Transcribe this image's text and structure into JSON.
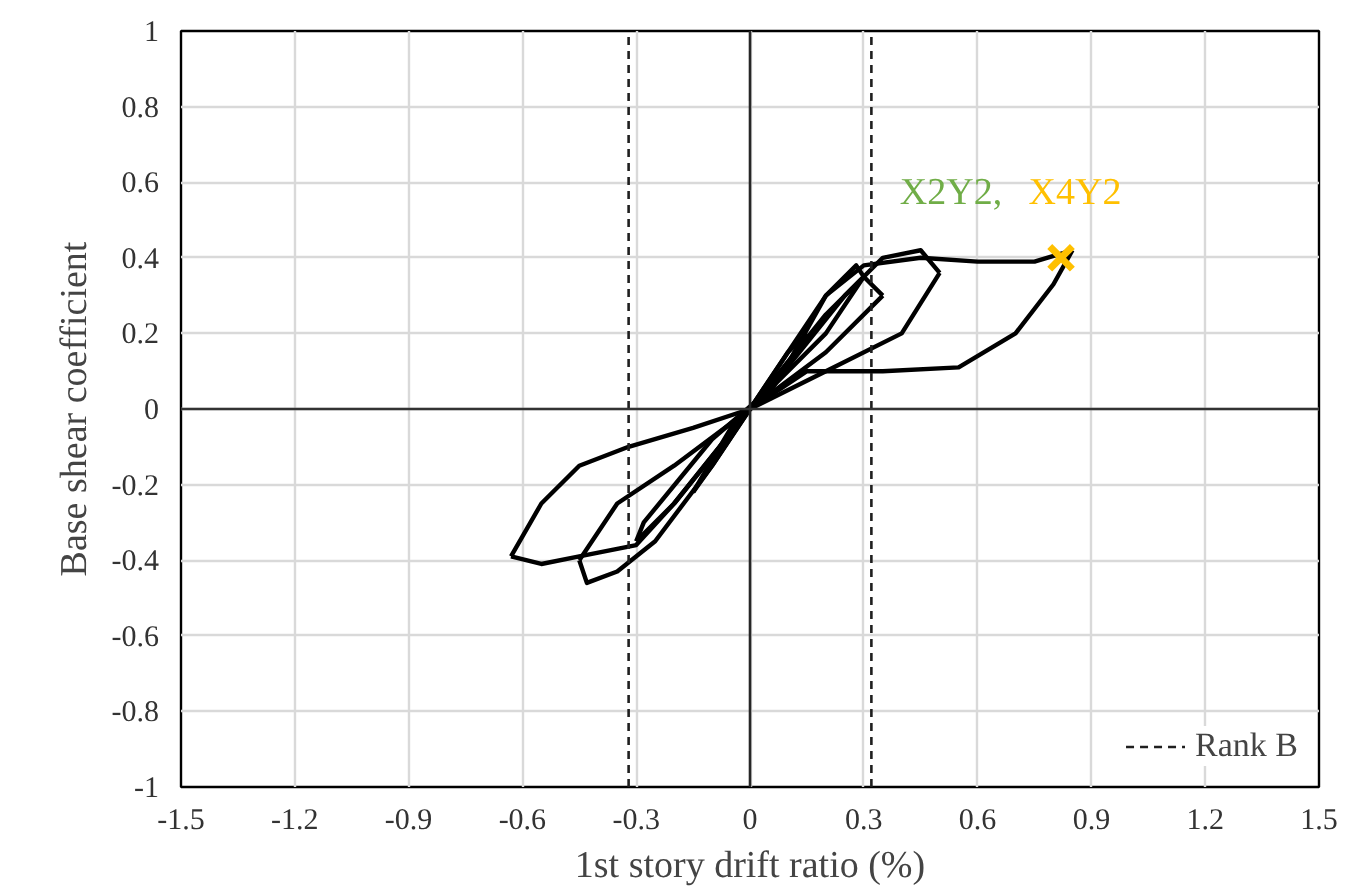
{
  "chart_data": {
    "type": "line",
    "xlabel": "1st story drift ratio (%)",
    "ylabel": "Base shear coefficient",
    "xlim": [
      -1.5,
      1.5
    ],
    "xticks": [
      -1.5,
      -1.2,
      -0.9,
      -0.6,
      -0.3,
      0,
      0.3,
      0.6,
      0.9,
      1.2,
      1.5
    ],
    "ylim": [
      -1,
      1
    ],
    "yticks": [
      -1,
      -0.8,
      -0.6,
      -0.4,
      -0.2,
      0,
      0.2,
      0.4,
      0.6,
      0.8,
      1
    ],
    "grid": true,
    "legend": "bottom right",
    "series": [
      {
        "color": "#000000",
        "x": [
          0,
          0.1,
          0.15
        ],
        "values": [
          0,
          0.15,
          0.2
        ]
      },
      {
        "color": "#000000",
        "x": [
          0.15,
          0.05,
          0,
          -0.1,
          -0.15
        ],
        "values": [
          0.2,
          0.04,
          0,
          -0.15,
          -0.22
        ]
      },
      {
        "color": "#000000",
        "x": [
          -0.15,
          -0.05,
          0,
          0.2,
          0.28,
          0.3
        ],
        "values": [
          -0.22,
          -0.05,
          0,
          0.3,
          0.38,
          0.35
        ]
      },
      {
        "color": "#000000",
        "x": [
          0.3,
          0.2,
          0,
          -0.2,
          -0.3
        ],
        "values": [
          0.35,
          0.2,
          0,
          -0.25,
          -0.35
        ]
      },
      {
        "color": "#000000",
        "x": [
          -0.3,
          -0.28,
          -0.1,
          0.05,
          0.25,
          0.35,
          0.45,
          0.5
        ],
        "values": [
          -0.35,
          -0.3,
          -0.08,
          0.05,
          0.3,
          0.4,
          0.42,
          0.36
        ]
      },
      {
        "color": "#000000",
        "x": [
          0.5,
          0.4,
          0.2,
          0,
          -0.15,
          -0.32,
          -0.45,
          -0.55,
          -0.63
        ],
        "values": [
          0.36,
          0.2,
          0.1,
          0,
          -0.05,
          -0.1,
          -0.15,
          -0.25,
          -0.39
        ]
      },
      {
        "color": "#000000",
        "x": [
          -0.63,
          -0.55,
          -0.45,
          -0.3,
          -0.2,
          0,
          0.2,
          0.3,
          0.35
        ],
        "values": [
          -0.39,
          -0.41,
          -0.39,
          -0.36,
          -0.25,
          0,
          0.25,
          0.35,
          0.3
        ]
      },
      {
        "color": "#000000",
        "x": [
          0.35,
          0.2,
          0,
          -0.2,
          -0.35,
          -0.45
        ],
        "values": [
          0.3,
          0.15,
          0,
          -0.15,
          -0.25,
          -0.4
        ]
      },
      {
        "color": "#000000",
        "x": [
          -0.45,
          -0.43,
          -0.35,
          -0.25,
          -0.1,
          0,
          0.15,
          0.35,
          0.55,
          0.7,
          0.8,
          0.85
        ],
        "values": [
          -0.4,
          -0.46,
          -0.43,
          -0.35,
          -0.15,
          0,
          0.1,
          0.1,
          0.11,
          0.2,
          0.33,
          0.42
        ]
      },
      {
        "color": "#000000",
        "x": [
          0.85,
          0.75,
          0.6,
          0.45,
          0.3,
          0.2,
          0.1,
          0
        ],
        "values": [
          0.42,
          0.39,
          0.39,
          0.4,
          0.38,
          0.3,
          0.12,
          0
        ]
      },
      {
        "type": "scatter",
        "marker": "cross",
        "color": "#ffc000",
        "x": [
          0.82
        ],
        "values": [
          0.4
        ]
      }
    ],
    "ref_lines": [
      {
        "axis": "x",
        "value": -0.32,
        "label": "Rank B",
        "color": "#1f1f1f",
        "line_style": "dashed"
      },
      {
        "axis": "x",
        "value": 0.32,
        "color": "#1f1f1f",
        "line_style": "dashed"
      },
      {
        "axis": "x",
        "value": 0,
        "color": "#262626",
        "line_style": "solid"
      },
      {
        "axis": "y",
        "value": 0,
        "color": "#333333",
        "line_style": "solid"
      }
    ],
    "annotations": [
      "X2Y2,",
      "X4Y2"
    ]
  }
}
